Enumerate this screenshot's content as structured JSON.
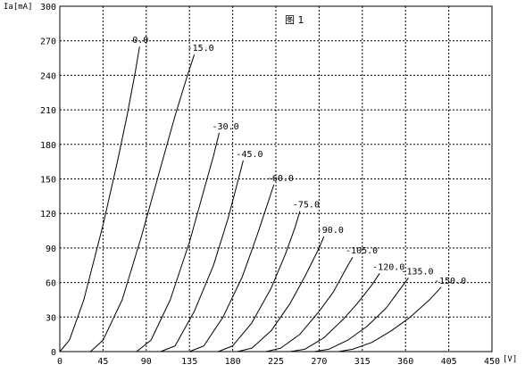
{
  "chart_data": {
    "type": "line",
    "title": "图 1",
    "xlabel": "[V]",
    "ylabel": "Ia[mA]",
    "xlim": [
      0,
      450
    ],
    "ylim": [
      0,
      300
    ],
    "xticks": [
      "0",
      "45",
      "90",
      "135",
      "180",
      "225",
      "270",
      "315",
      "360",
      "405",
      "450"
    ],
    "yticks": [
      "0",
      "30",
      "60",
      "90",
      "120",
      "150",
      "180",
      "210",
      "240",
      "270",
      "300"
    ],
    "grid": true,
    "series": [
      {
        "name": "0.0",
        "points": [
          [
            0,
            0
          ],
          [
            10,
            10
          ],
          [
            25,
            45
          ],
          [
            45,
            110
          ],
          [
            60,
            165
          ],
          [
            70,
            205
          ],
          [
            79,
            245
          ],
          [
            83,
            265
          ]
        ]
      },
      {
        "name": "-15.0",
        "points": [
          [
            32,
            0
          ],
          [
            45,
            10
          ],
          [
            65,
            45
          ],
          [
            85,
            100
          ],
          [
            105,
            160
          ],
          [
            120,
            205
          ],
          [
            133,
            240
          ],
          [
            140,
            258
          ]
        ]
      },
      {
        "name": "-30.0",
        "points": [
          [
            80,
            0
          ],
          [
            95,
            10
          ],
          [
            115,
            45
          ],
          [
            135,
            95
          ],
          [
            150,
            140
          ],
          [
            160,
            170
          ],
          [
            166,
            190
          ]
        ]
      },
      {
        "name": "-45.0",
        "points": [
          [
            105,
            0
          ],
          [
            120,
            5
          ],
          [
            140,
            35
          ],
          [
            160,
            75
          ],
          [
            175,
            115
          ],
          [
            186,
            150
          ],
          [
            191,
            166
          ]
        ]
      },
      {
        "name": "-60.0",
        "points": [
          [
            135,
            0
          ],
          [
            150,
            5
          ],
          [
            170,
            30
          ],
          [
            190,
            65
          ],
          [
            205,
            100
          ],
          [
            215,
            125
          ],
          [
            223,
            145
          ]
        ]
      },
      {
        "name": "-75.0",
        "points": [
          [
            165,
            0
          ],
          [
            180,
            5
          ],
          [
            200,
            25
          ],
          [
            220,
            55
          ],
          [
            235,
            85
          ],
          [
            245,
            108
          ],
          [
            250,
            122
          ]
        ]
      },
      {
        "name": "-90.0",
        "points": [
          [
            185,
            0
          ],
          [
            200,
            3
          ],
          [
            220,
            18
          ],
          [
            240,
            42
          ],
          [
            255,
            65
          ],
          [
            270,
            90
          ],
          [
            275,
            100
          ]
        ]
      },
      {
        "name": "-105.0",
        "points": [
          [
            215,
            0
          ],
          [
            230,
            3
          ],
          [
            250,
            15
          ],
          [
            270,
            35
          ],
          [
            285,
            52
          ],
          [
            300,
            75
          ],
          [
            305,
            82
          ]
        ]
      },
      {
        "name": "-120.0",
        "points": [
          [
            240,
            0
          ],
          [
            255,
            2
          ],
          [
            275,
            12
          ],
          [
            295,
            28
          ],
          [
            310,
            42
          ],
          [
            325,
            58
          ],
          [
            333,
            68
          ]
        ]
      },
      {
        "name": "-135.0",
        "points": [
          [
            265,
            0
          ],
          [
            280,
            2
          ],
          [
            300,
            10
          ],
          [
            320,
            22
          ],
          [
            340,
            38
          ],
          [
            355,
            55
          ],
          [
            363,
            64
          ]
        ]
      },
      {
        "name": "-150.0",
        "points": [
          [
            290,
            0
          ],
          [
            305,
            2
          ],
          [
            325,
            8
          ],
          [
            345,
            18
          ],
          [
            365,
            30
          ],
          [
            385,
            45
          ],
          [
            397,
            56
          ]
        ]
      }
    ]
  }
}
